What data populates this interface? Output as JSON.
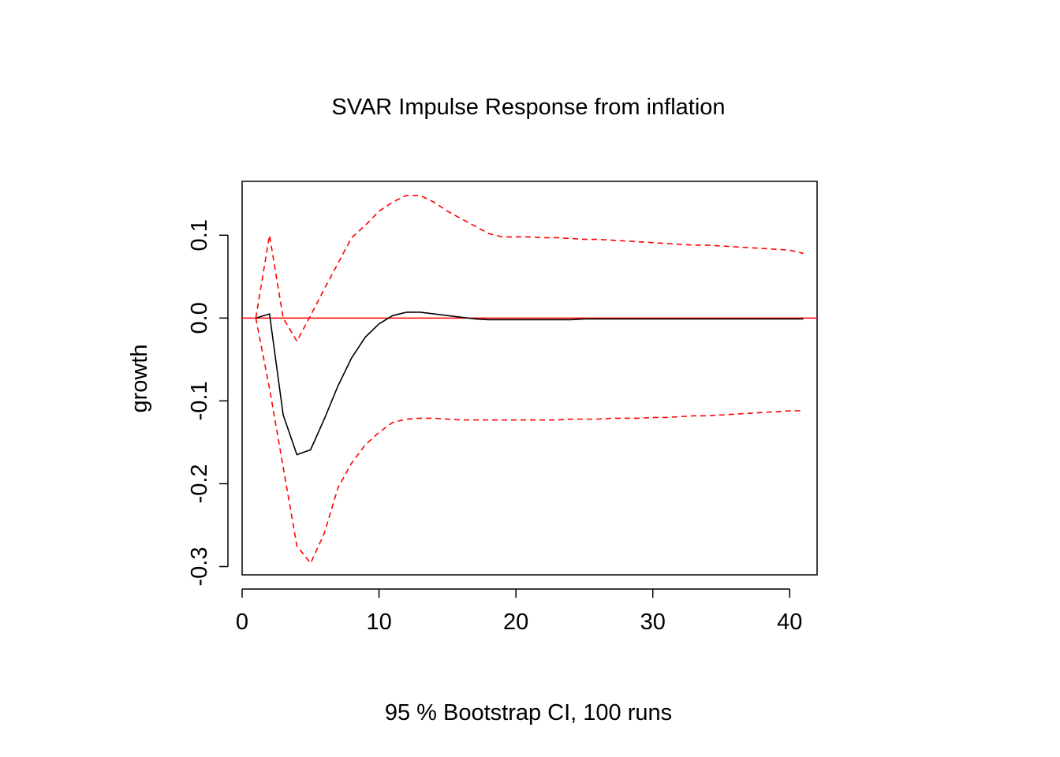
{
  "chart_data": {
    "type": "line",
    "title": "SVAR Impulse Response from inflation",
    "xlabel": "95 % Bootstrap CI,  100 runs",
    "ylabel": "growth",
    "xlim": [
      0,
      42
    ],
    "ylim": [
      -0.31,
      0.165
    ],
    "xticks": [
      0,
      10,
      20,
      30,
      40
    ],
    "xtick_labels": [
      "0",
      "10",
      "20",
      "30",
      "40"
    ],
    "yticks": [
      -0.3,
      -0.2,
      -0.1,
      0.0,
      0.1
    ],
    "ytick_labels": [
      "-0.3",
      "-0.2",
      "-0.1",
      "0.0",
      "0.1"
    ],
    "grid": false,
    "reference_line": {
      "y": 0,
      "color": "#ff0000"
    },
    "x": [
      1,
      2,
      3,
      4,
      5,
      6,
      7,
      8,
      9,
      10,
      11,
      12,
      13,
      14,
      15,
      16,
      17,
      18,
      19,
      20,
      21,
      22,
      23,
      24,
      25,
      26,
      27,
      28,
      29,
      30,
      31,
      32,
      33,
      34,
      35,
      36,
      37,
      38,
      39,
      40,
      41
    ],
    "series": [
      {
        "role": "response",
        "color": "#000000",
        "dash": "solid",
        "values": [
          0,
          0.005,
          -0.117,
          -0.165,
          -0.159,
          -0.122,
          -0.082,
          -0.048,
          -0.023,
          -0.007,
          0.003,
          0.007,
          0.007,
          0.005,
          0.003,
          0.001,
          -0.001,
          -0.002,
          -0.002,
          -0.002,
          -0.002,
          -0.002,
          -0.002,
          -0.002,
          -0.001,
          -0.001,
          -0.001,
          -0.001,
          -0.001,
          -0.001,
          -0.001,
          -0.001,
          -0.001,
          -0.001,
          -0.001,
          -0.001,
          -0.001,
          -0.001,
          -0.001,
          -0.001,
          -0.001
        ]
      },
      {
        "role": "upper-ci",
        "color": "#ff0000",
        "dash": "dashed",
        "values": [
          0,
          0.1,
          0,
          -0.028,
          0.003,
          0.035,
          0.066,
          0.097,
          0.112,
          0.129,
          0.14,
          0.148,
          0.148,
          0.14,
          0.129,
          0.12,
          0.111,
          0.102,
          0.098,
          0.098,
          0.098,
          0.097,
          0.097,
          0.096,
          0.095,
          0.095,
          0.094,
          0.093,
          0.092,
          0.091,
          0.09,
          0.089,
          0.088,
          0.088,
          0.087,
          0.086,
          0.085,
          0.084,
          0.083,
          0.082,
          0.078
        ]
      },
      {
        "role": "lower-ci",
        "color": "#ff0000",
        "dash": "dashed",
        "values": [
          0,
          -0.085,
          -0.18,
          -0.275,
          -0.296,
          -0.26,
          -0.205,
          -0.175,
          -0.153,
          -0.138,
          -0.126,
          -0.122,
          -0.121,
          -0.121,
          -0.122,
          -0.123,
          -0.123,
          -0.123,
          -0.123,
          -0.123,
          -0.123,
          -0.123,
          -0.123,
          -0.122,
          -0.122,
          -0.122,
          -0.121,
          -0.121,
          -0.121,
          -0.12,
          -0.12,
          -0.119,
          -0.118,
          -0.118,
          -0.117,
          -0.116,
          -0.115,
          -0.114,
          -0.113,
          -0.112,
          -0.112
        ]
      }
    ]
  }
}
